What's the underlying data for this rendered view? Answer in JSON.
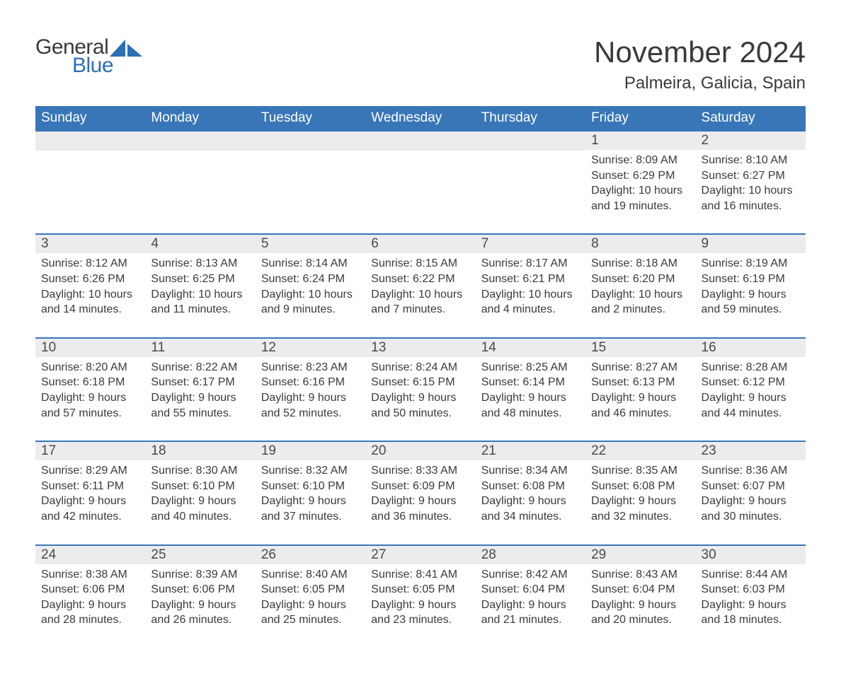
{
  "brand": {
    "word1": "General",
    "word2": "Blue",
    "accent_color": "#2c6fb5"
  },
  "title": "November 2024",
  "location": "Palmeira, Galicia, Spain",
  "colors": {
    "header_bg": "#3876b8",
    "header_fg": "#ffffff",
    "strip_bg": "#ececec",
    "row_border": "#3876b8",
    "text": "#3a3a3a",
    "page_bg": "#ffffff"
  },
  "typography": {
    "title_fontsize_pt": 32,
    "location_fontsize_pt": 18,
    "dayheader_fontsize_pt": 14,
    "daynum_fontsize_pt": 14,
    "detail_fontsize_pt": 12
  },
  "day_headers": [
    "Sunday",
    "Monday",
    "Tuesday",
    "Wednesday",
    "Thursday",
    "Friday",
    "Saturday"
  ],
  "weeks": [
    [
      null,
      null,
      null,
      null,
      null,
      {
        "n": "1",
        "sunrise": "8:09 AM",
        "sunset": "6:29 PM",
        "daylight": "10 hours and 19 minutes."
      },
      {
        "n": "2",
        "sunrise": "8:10 AM",
        "sunset": "6:27 PM",
        "daylight": "10 hours and 16 minutes."
      }
    ],
    [
      {
        "n": "3",
        "sunrise": "8:12 AM",
        "sunset": "6:26 PM",
        "daylight": "10 hours and 14 minutes."
      },
      {
        "n": "4",
        "sunrise": "8:13 AM",
        "sunset": "6:25 PM",
        "daylight": "10 hours and 11 minutes."
      },
      {
        "n": "5",
        "sunrise": "8:14 AM",
        "sunset": "6:24 PM",
        "daylight": "10 hours and 9 minutes."
      },
      {
        "n": "6",
        "sunrise": "8:15 AM",
        "sunset": "6:22 PM",
        "daylight": "10 hours and 7 minutes."
      },
      {
        "n": "7",
        "sunrise": "8:17 AM",
        "sunset": "6:21 PM",
        "daylight": "10 hours and 4 minutes."
      },
      {
        "n": "8",
        "sunrise": "8:18 AM",
        "sunset": "6:20 PM",
        "daylight": "10 hours and 2 minutes."
      },
      {
        "n": "9",
        "sunrise": "8:19 AM",
        "sunset": "6:19 PM",
        "daylight": "9 hours and 59 minutes."
      }
    ],
    [
      {
        "n": "10",
        "sunrise": "8:20 AM",
        "sunset": "6:18 PM",
        "daylight": "9 hours and 57 minutes."
      },
      {
        "n": "11",
        "sunrise": "8:22 AM",
        "sunset": "6:17 PM",
        "daylight": "9 hours and 55 minutes."
      },
      {
        "n": "12",
        "sunrise": "8:23 AM",
        "sunset": "6:16 PM",
        "daylight": "9 hours and 52 minutes."
      },
      {
        "n": "13",
        "sunrise": "8:24 AM",
        "sunset": "6:15 PM",
        "daylight": "9 hours and 50 minutes."
      },
      {
        "n": "14",
        "sunrise": "8:25 AM",
        "sunset": "6:14 PM",
        "daylight": "9 hours and 48 minutes."
      },
      {
        "n": "15",
        "sunrise": "8:27 AM",
        "sunset": "6:13 PM",
        "daylight": "9 hours and 46 minutes."
      },
      {
        "n": "16",
        "sunrise": "8:28 AM",
        "sunset": "6:12 PM",
        "daylight": "9 hours and 44 minutes."
      }
    ],
    [
      {
        "n": "17",
        "sunrise": "8:29 AM",
        "sunset": "6:11 PM",
        "daylight": "9 hours and 42 minutes."
      },
      {
        "n": "18",
        "sunrise": "8:30 AM",
        "sunset": "6:10 PM",
        "daylight": "9 hours and 40 minutes."
      },
      {
        "n": "19",
        "sunrise": "8:32 AM",
        "sunset": "6:10 PM",
        "daylight": "9 hours and 37 minutes."
      },
      {
        "n": "20",
        "sunrise": "8:33 AM",
        "sunset": "6:09 PM",
        "daylight": "9 hours and 36 minutes."
      },
      {
        "n": "21",
        "sunrise": "8:34 AM",
        "sunset": "6:08 PM",
        "daylight": "9 hours and 34 minutes."
      },
      {
        "n": "22",
        "sunrise": "8:35 AM",
        "sunset": "6:08 PM",
        "daylight": "9 hours and 32 minutes."
      },
      {
        "n": "23",
        "sunrise": "8:36 AM",
        "sunset": "6:07 PM",
        "daylight": "9 hours and 30 minutes."
      }
    ],
    [
      {
        "n": "24",
        "sunrise": "8:38 AM",
        "sunset": "6:06 PM",
        "daylight": "9 hours and 28 minutes."
      },
      {
        "n": "25",
        "sunrise": "8:39 AM",
        "sunset": "6:06 PM",
        "daylight": "9 hours and 26 minutes."
      },
      {
        "n": "26",
        "sunrise": "8:40 AM",
        "sunset": "6:05 PM",
        "daylight": "9 hours and 25 minutes."
      },
      {
        "n": "27",
        "sunrise": "8:41 AM",
        "sunset": "6:05 PM",
        "daylight": "9 hours and 23 minutes."
      },
      {
        "n": "28",
        "sunrise": "8:42 AM",
        "sunset": "6:04 PM",
        "daylight": "9 hours and 21 minutes."
      },
      {
        "n": "29",
        "sunrise": "8:43 AM",
        "sunset": "6:04 PM",
        "daylight": "9 hours and 20 minutes."
      },
      {
        "n": "30",
        "sunrise": "8:44 AM",
        "sunset": "6:03 PM",
        "daylight": "9 hours and 18 minutes."
      }
    ]
  ],
  "detail_labels": {
    "sunrise": "Sunrise: ",
    "sunset": "Sunset: ",
    "daylight": "Daylight: "
  }
}
